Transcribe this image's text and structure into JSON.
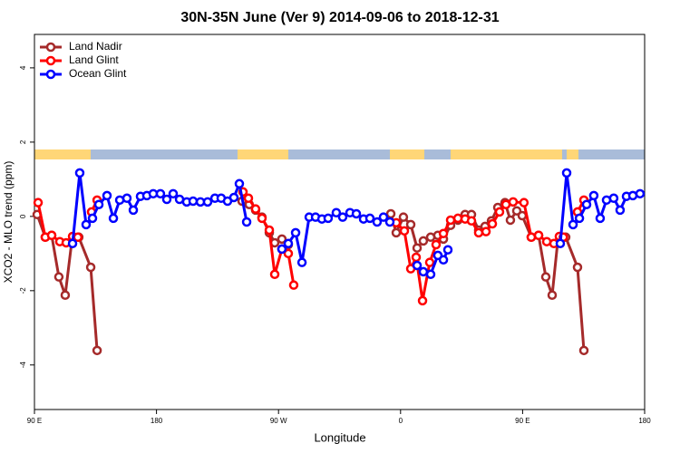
{
  "chart_data": {
    "type": "line",
    "title": "30N-35N June (Ver 9)   2014-09-06 to 2018-12-31",
    "x_label": "Longitude",
    "y_label": "XCO2 - MLO trend (ppm)",
    "xlim": [
      90,
      540
    ],
    "ylim": [
      -5.2,
      4.9
    ],
    "xticks": [
      {
        "value": 90,
        "label": "90 E"
      },
      {
        "value": 180,
        "label": "180"
      },
      {
        "value": 270,
        "label": "90 W"
      },
      {
        "value": 360,
        "label": "0"
      },
      {
        "value": 450,
        "label": "90 E"
      },
      {
        "value": 540,
        "label": "180"
      }
    ],
    "yticks": [
      -4,
      -2,
      0,
      2,
      4
    ],
    "legend": "topleft",
    "series": [
      {
        "name": "Land Nadir",
        "color": "#a52a2a",
        "x": [
          92,
          98,
          102.7,
          108,
          112.7,
          117.4,
          122.7,
          131.5,
          136.2,
          190,
          243.1,
          248.4,
          253.1,
          257.8,
          263.2,
          267.2,
          272.5,
          277.2,
          320,
          352.8,
          356.8,
          362.1,
          367.5,
          372.2,
          376.8,
          382.2,
          387.5,
          391.6,
          396.9,
          402.3,
          407.6,
          412.3,
          417.6,
          422.3,
          427,
          431.7,
          437,
          441,
          445.7,
          449.7,
          456.4,
          461.8,
          467.1,
          471.8,
          475.8,
          481.8,
          490.5,
          495.2
        ],
        "values": [
          0.05,
          -0.56,
          -0.51,
          -1.63,
          -2.12,
          -0.71,
          -0.56,
          -1.37,
          -3.61,
          null,
          0.41,
          0.32,
          0.17,
          -0.02,
          -0.44,
          -0.71,
          -0.61,
          -0.76,
          null,
          0.07,
          -0.44,
          -0.02,
          -0.22,
          -0.85,
          -0.66,
          -0.56,
          -0.51,
          -0.61,
          -0.24,
          -0.1,
          0.05,
          0.05,
          -0.37,
          -0.27,
          -0.12,
          0.24,
          0.37,
          -0.1,
          0.15,
          0.02,
          -0.56,
          -0.51,
          -1.63,
          -2.12,
          -0.71,
          -0.56,
          -1.37,
          -3.61
        ]
      },
      {
        "name": "Land Glint",
        "color": "#ff0000",
        "x": [
          92.7,
          98,
          102.7,
          108.7,
          113.4,
          118.1,
          122,
          127,
          132.1,
          136.2,
          190,
          243.8,
          247.8,
          253.1,
          257.8,
          263.2,
          267.2,
          272.5,
          277.2,
          281.2,
          320,
          356.8,
          362.8,
          367.5,
          371.5,
          376.2,
          381.5,
          386.2,
          391.6,
          396.9,
          402.3,
          407.6,
          412.3,
          417.6,
          423,
          427.7,
          433,
          437.7,
          443,
          451,
          456.4,
          461.8,
          467.8,
          473.1,
          477.1,
          480,
          485,
          490.5,
          495.2
        ],
        "values": [
          0.37,
          -0.56,
          -0.51,
          -0.68,
          -0.71,
          -0.54,
          -0.56,
          null,
          0.12,
          0.44,
          null,
          0.66,
          0.49,
          0.2,
          -0.05,
          -0.37,
          -1.56,
          -0.88,
          -1.0,
          -1.85,
          null,
          -0.17,
          -0.39,
          -1.41,
          -1.1,
          -2.27,
          -1.24,
          -0.76,
          -0.46,
          -0.1,
          -0.05,
          -0.07,
          -0.12,
          -0.44,
          -0.41,
          -0.2,
          0.12,
          0.32,
          0.39,
          0.37,
          -0.56,
          -0.51,
          -0.68,
          -0.73,
          -0.54,
          -0.56,
          null,
          0.12,
          0.44
        ]
      },
      {
        "name": "Ocean Glint",
        "color": "#0000ff",
        "x": [
          118.1,
          123.4,
          128.1,
          132.8,
          137.5,
          143.5,
          148.2,
          152.9,
          158.2,
          162.9,
          168.2,
          172.9,
          177.6,
          182.9,
          187.6,
          192.3,
          197,
          202.3,
          207,
          212.4,
          217.7,
          223.1,
          227.7,
          232.4,
          237.1,
          241.1,
          246.5,
          260,
          272.5,
          277.2,
          282.6,
          287.3,
          292.6,
          297.3,
          302,
          306.6,
          312.6,
          317.3,
          322.7,
          327.4,
          332.7,
          337.4,
          342.7,
          347.4,
          352.1,
          362,
          372.2,
          376.8,
          382.2,
          387.5,
          391.6,
          394.9,
          440,
          477.8,
          482.5,
          487.2,
          491.9,
          497.2,
          502.5,
          507.2,
          511.9,
          517.2,
          521.9,
          526.6,
          531.3,
          536.6
        ],
        "values": [
          -0.73,
          1.17,
          -0.22,
          -0.05,
          0.32,
          0.56,
          -0.05,
          0.44,
          0.49,
          0.17,
          0.54,
          0.56,
          0.61,
          0.61,
          0.46,
          0.61,
          0.46,
          0.39,
          0.41,
          0.39,
          0.39,
          0.49,
          0.49,
          0.41,
          0.51,
          0.88,
          -0.15,
          null,
          -0.88,
          -0.73,
          -0.44,
          -1.24,
          -0.02,
          -0.02,
          -0.07,
          -0.05,
          0.1,
          -0.02,
          0.1,
          0.07,
          -0.07,
          -0.05,
          -0.15,
          -0.02,
          -0.15,
          null,
          -1.32,
          -1.49,
          -1.56,
          -1.05,
          -1.17,
          -0.9,
          null,
          -0.73,
          1.17,
          -0.22,
          -0.05,
          0.32,
          0.56,
          -0.05,
          0.44,
          0.49,
          0.17,
          0.54,
          0.56,
          0.61
        ]
      }
    ]
  }
}
